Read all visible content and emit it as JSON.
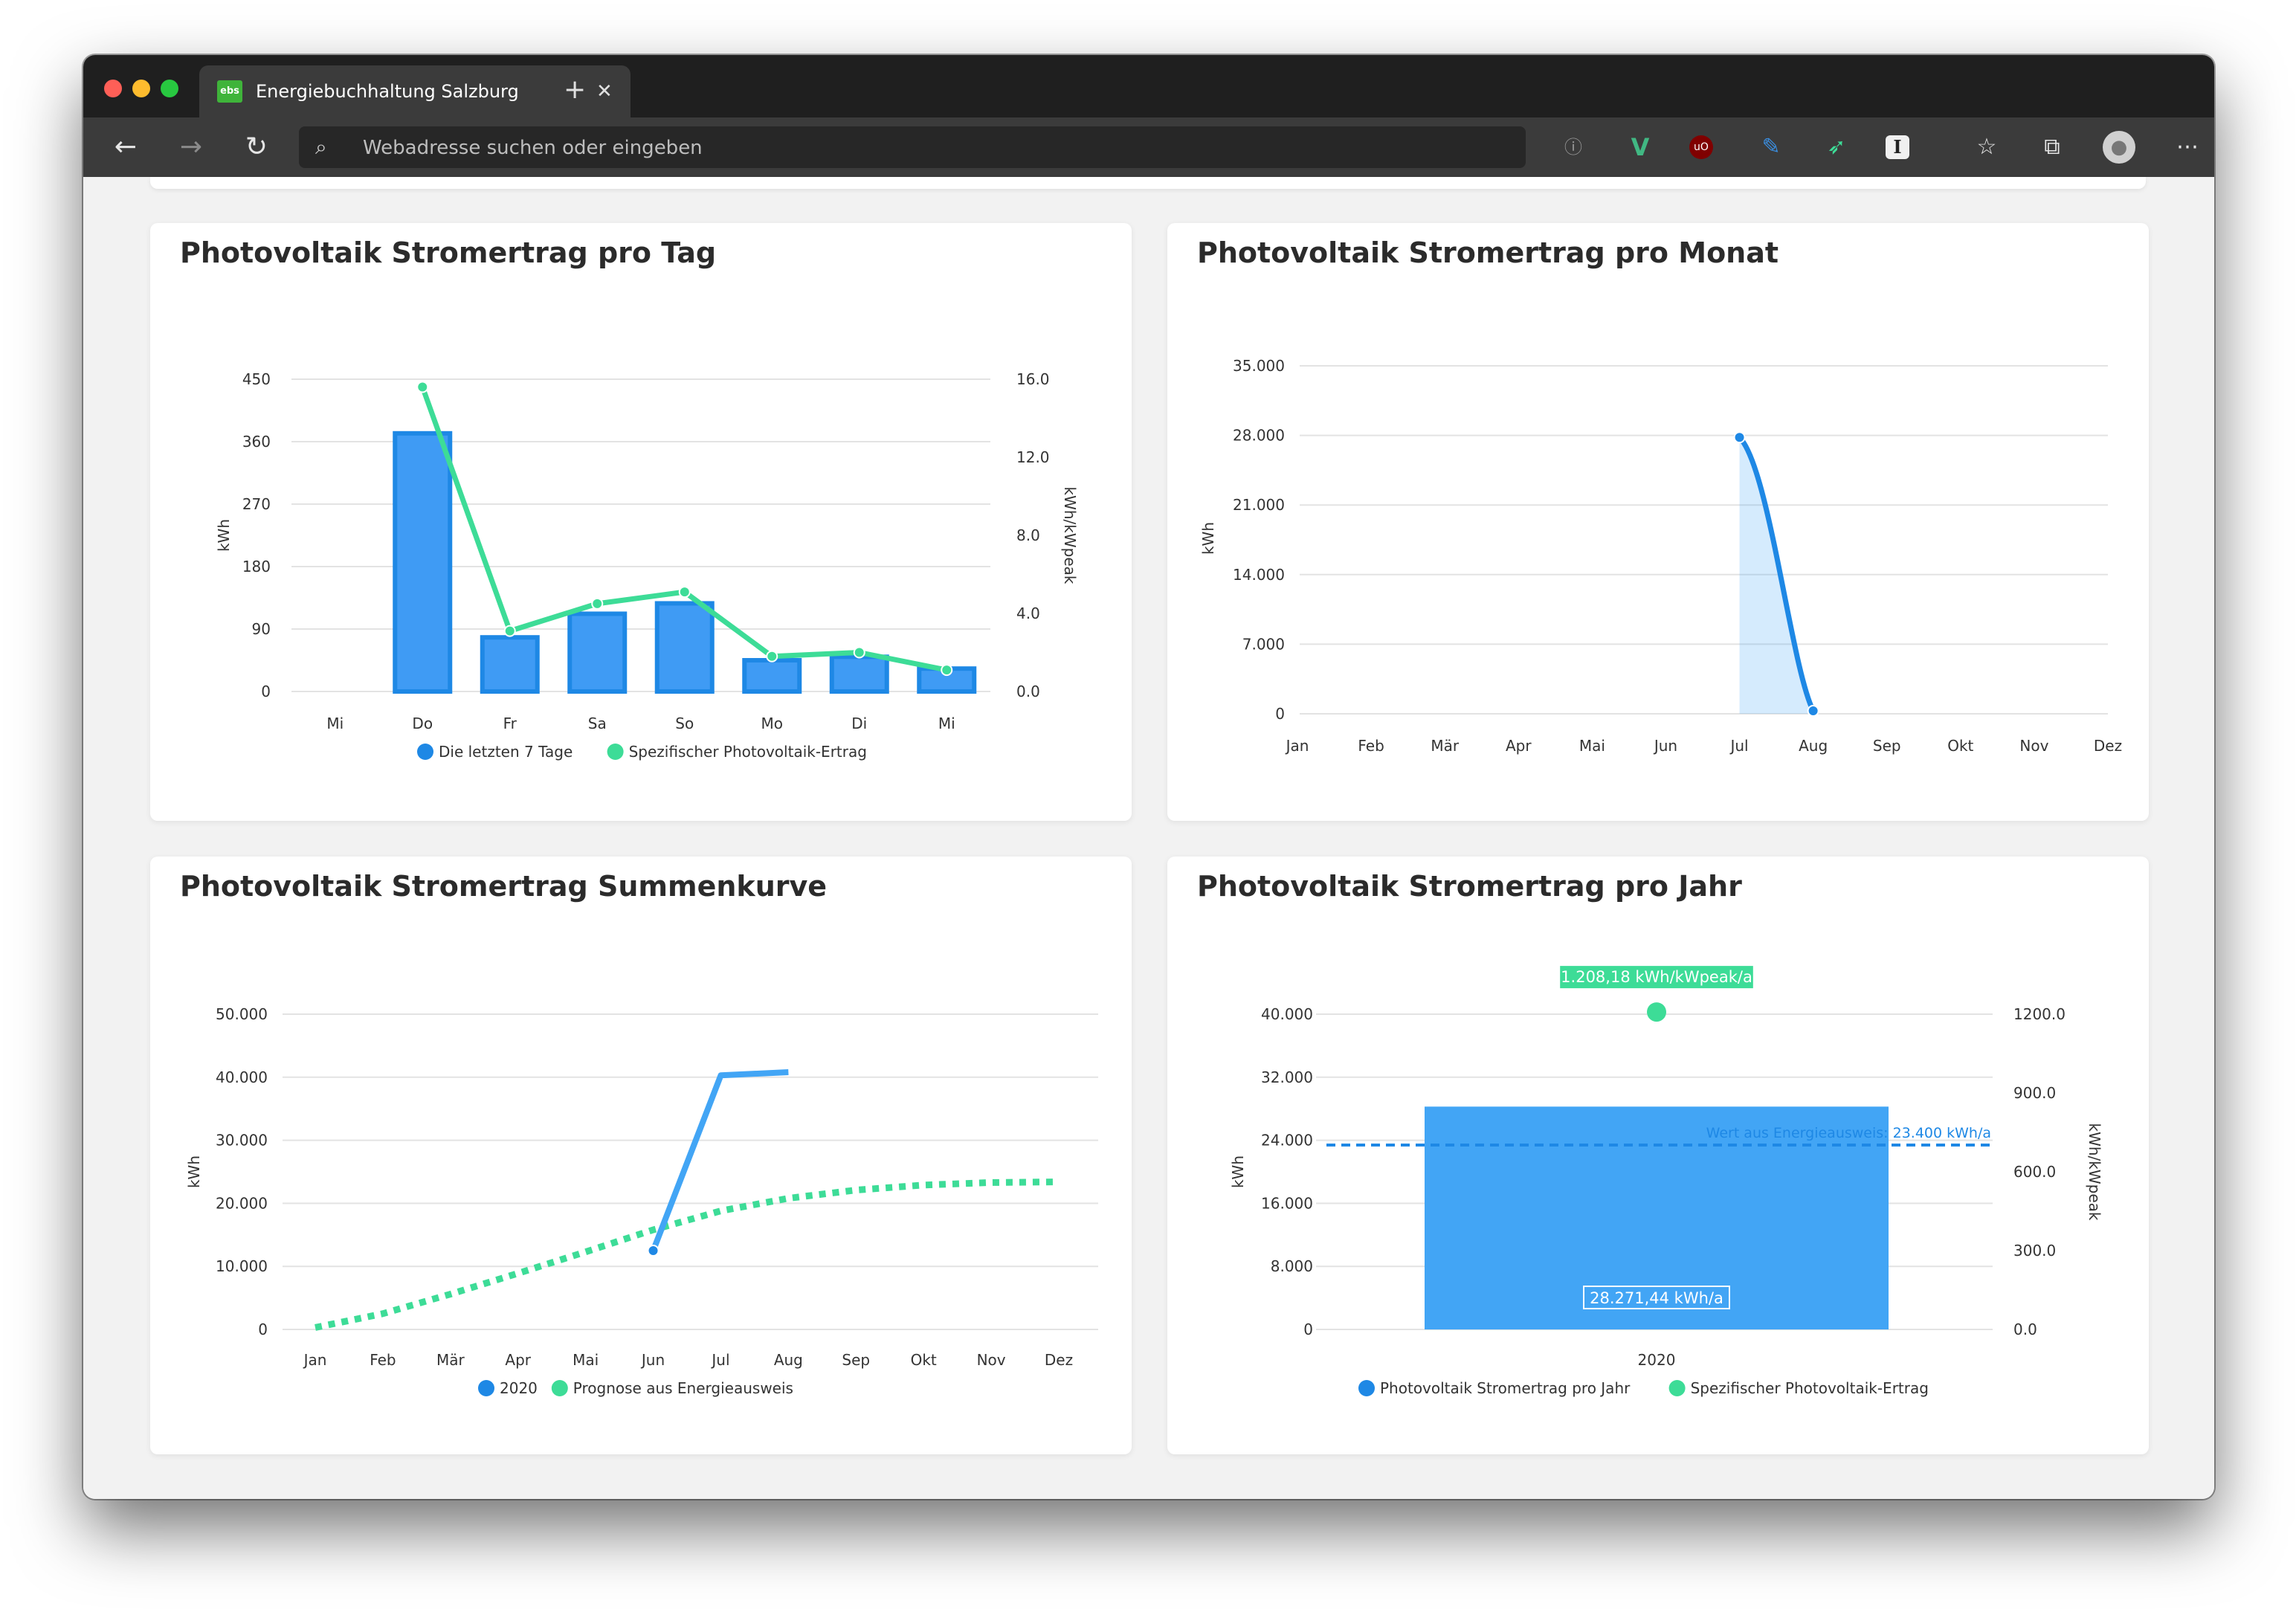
{
  "browser": {
    "tab_title": "Energiebuchhaltung Salzburg",
    "tab_favicon_text": "ebs",
    "address_placeholder": "Webadresse suchen oder eingeben",
    "colors": {
      "close": "#ff5f57",
      "minimize": "#febc2e",
      "maximize": "#28c840"
    },
    "extensions": [
      "info-icon",
      "vue-icon",
      "ublock-icon",
      "pen-icon",
      "bird-icon",
      "instapaper-icon",
      "favorites-icon",
      "collections-icon",
      "profile-icon",
      "more-icon"
    ]
  },
  "cards": {
    "day": {
      "title": "Photovoltaik Stromertrag pro Tag"
    },
    "month": {
      "title": "Photovoltaik Stromertrag pro Monat"
    },
    "cumulative": {
      "title": "Photovoltaik Stromertrag Summenkurve"
    },
    "year": {
      "title": "Photovoltaik Stromertrag pro Jahr"
    }
  },
  "chart_data": [
    {
      "id": "day",
      "type": "bar",
      "categories": [
        "Mi",
        "Do",
        "Fr",
        "Sa",
        "So",
        "Mo",
        "Di",
        "Mi"
      ],
      "ylabel": "kWh",
      "y2label": "kWh/kWpeak",
      "ylim": [
        0,
        450
      ],
      "yticks": [
        "0",
        "90",
        "180",
        "270",
        "360",
        "450"
      ],
      "y2lim": [
        0,
        16
      ],
      "y2ticks": [
        "0.0",
        "4.0",
        "8.0",
        "12.0",
        "16.0"
      ],
      "series": [
        {
          "name": "Die letzten 7 Tage",
          "type": "bar",
          "color": "#1e88e5",
          "values": [
            null,
            372,
            78,
            112,
            127,
            45,
            50,
            33
          ]
        },
        {
          "name": "Spezifischer Photovoltaik-Ertrag",
          "type": "line",
          "color": "#3ddc97",
          "values": [
            null,
            15.6,
            3.1,
            4.5,
            5.1,
            1.8,
            2.0,
            1.1
          ]
        }
      ],
      "legend": "bottom"
    },
    {
      "id": "month",
      "type": "area",
      "categories": [
        "Jan",
        "Feb",
        "Mär",
        "Apr",
        "Mai",
        "Jun",
        "Jul",
        "Aug",
        "Sep",
        "Okt",
        "Nov",
        "Dez"
      ],
      "ylabel": "kWh",
      "ylim": [
        0,
        35000
      ],
      "yticks": [
        "0",
        "7.000",
        "14.000",
        "21.000",
        "28.000",
        "35.000"
      ],
      "series": [
        {
          "color": "#1e88e5",
          "values": [
            null,
            null,
            null,
            null,
            null,
            null,
            27800,
            300,
            null,
            null,
            null,
            null
          ]
        }
      ]
    },
    {
      "id": "cumulative",
      "type": "line",
      "categories": [
        "Jan",
        "Feb",
        "Mär",
        "Apr",
        "Mai",
        "Jun",
        "Jul",
        "Aug",
        "Sep",
        "Okt",
        "Nov",
        "Dez"
      ],
      "ylabel": "kWh",
      "ylim": [
        0,
        50000
      ],
      "yticks": [
        "0",
        "10.000",
        "20.000",
        "30.000",
        "40.000",
        "50.000"
      ],
      "series": [
        {
          "name": "2020",
          "color": "#42a5f5",
          "values": [
            null,
            null,
            null,
            null,
            null,
            12500,
            40300,
            40800,
            null,
            null,
            null,
            null
          ]
        },
        {
          "name": "Prognose aus Energieausweis",
          "color": "#3ddc97",
          "dashed": true,
          "values": [
            300,
            2500,
            5600,
            8900,
            12300,
            15800,
            18800,
            20800,
            22100,
            22900,
            23300,
            23400
          ]
        }
      ],
      "legend": "bottom"
    },
    {
      "id": "year",
      "type": "bar",
      "categories": [
        "2020"
      ],
      "ylabel": "kWh",
      "y2label": "kWh/kWpeak",
      "ylim": [
        0,
        40000
      ],
      "yticks": [
        "0",
        "8.000",
        "16.000",
        "24.000",
        "32.000",
        "40.000"
      ],
      "y2lim": [
        0,
        1200
      ],
      "y2ticks": [
        "0.0",
        "300.0",
        "600.0",
        "900.0",
        "1200.0"
      ],
      "series": [
        {
          "name": "Photovoltaik Stromertrag pro Jahr",
          "type": "bar",
          "color": "#42a5f5",
          "values": [
            28271.44
          ],
          "label": "28.271,44 kWh/a"
        },
        {
          "name": "Spezifischer Photovoltaik-Ertrag",
          "type": "point",
          "color": "#3ddc97",
          "values": [
            1208.18
          ],
          "label": "1.208,18 kWh/kWpeak/a"
        }
      ],
      "annotation": {
        "text": "Wert aus Energieausweis: 23.400 kWh/a",
        "value": 23400,
        "color": "#1e88e5"
      },
      "legend": "bottom"
    }
  ]
}
